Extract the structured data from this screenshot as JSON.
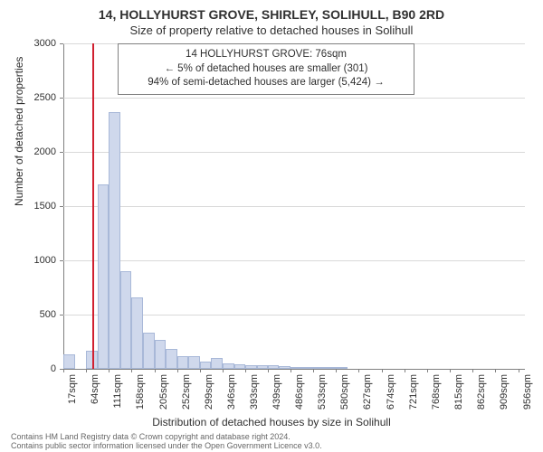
{
  "title": "14, HOLLYHURST GROVE, SHIRLEY, SOLIHULL, B90 2RD",
  "subtitle": "Size of property relative to detached houses in Solihull",
  "infobox": {
    "line1": "14 HOLLYHURST GROVE: 76sqm",
    "line2": "← 5% of detached houses are smaller (301)",
    "line3": "94% of semi-detached houses are larger (5,424) →"
  },
  "ylabel": "Number of detached properties",
  "xlabel": "Distribution of detached houses by size in Solihull",
  "footer1": "Contains HM Land Registry data © Crown copyright and database right 2024.",
  "footer2": "Contains public sector information licensed under the Open Government Licence v3.0.",
  "chart": {
    "type": "histogram",
    "bar_fill": "#cfd8ec",
    "bar_stroke": "#a8b8d8",
    "marker_color": "#d02030",
    "marker_sqm": 76,
    "background_color": "#ffffff",
    "grid_color": "#d9d9d9",
    "axis_color": "#808080",
    "text_color": "#303030",
    "title_fontsize": 14,
    "subtitle_fontsize": 13,
    "label_fontsize": 12,
    "tick_fontsize": 11,
    "ylim": [
      0,
      3000
    ],
    "ytick_step": 500,
    "yticks": [
      0,
      500,
      1000,
      1500,
      2000,
      2500,
      3000
    ],
    "x_min_sqm": 17,
    "x_max_sqm": 970,
    "xticks_sqm": [
      17,
      64,
      111,
      158,
      205,
      252,
      299,
      346,
      393,
      439,
      486,
      533,
      580,
      627,
      674,
      721,
      768,
      815,
      862,
      909,
      956
    ],
    "xticks_labels": [
      "17sqm",
      "64sqm",
      "111sqm",
      "158sqm",
      "205sqm",
      "252sqm",
      "299sqm",
      "346sqm",
      "393sqm",
      "439sqm",
      "486sqm",
      "533sqm",
      "580sqm",
      "627sqm",
      "674sqm",
      "721sqm",
      "768sqm",
      "815sqm",
      "862sqm",
      "909sqm",
      "956sqm"
    ],
    "bin_width_sqm": 23.5,
    "bins_start_sqm": [
      17,
      40.5,
      64,
      87.5,
      111,
      134.5,
      158,
      181.5,
      205,
      228.5,
      252,
      275.5,
      299,
      322.5,
      346,
      369.5,
      393,
      416.5,
      439,
      462.5,
      486,
      509.5,
      533,
      556.5,
      580
    ],
    "counts": [
      130,
      0,
      170,
      1700,
      2370,
      900,
      660,
      330,
      270,
      180,
      120,
      120,
      70,
      100,
      50,
      45,
      35,
      30,
      30,
      25,
      20,
      18,
      15,
      12,
      10
    ]
  }
}
